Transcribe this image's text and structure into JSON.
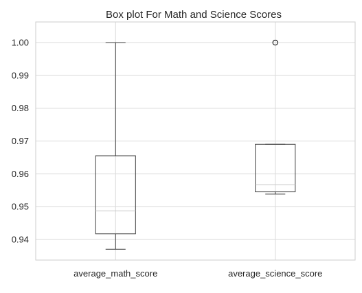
{
  "chart_data": {
    "type": "box",
    "title": "Box plot For Math and Science Scores",
    "xlabel": "",
    "ylabel": "",
    "ylim": [
      0.9337,
      1.0063
    ],
    "yticks": [
      0.94,
      0.95,
      0.96,
      0.97,
      0.98,
      0.99,
      1.0
    ],
    "ytick_labels": [
      "0.94",
      "0.95",
      "0.96",
      "0.97",
      "0.98",
      "0.99",
      "1.00"
    ],
    "grid": true,
    "categories": [
      "average_math_score",
      "average_science_score"
    ],
    "boxes": [
      {
        "label": "average_math_score",
        "whisker_low": 0.937,
        "q1": 0.9417,
        "median": 0.9487,
        "q3": 0.9655,
        "whisker_high": 1.0,
        "outliers": []
      },
      {
        "label": "average_science_score",
        "whisker_low": 0.9538,
        "q1": 0.9545,
        "median": 0.9567,
        "q3": 0.969,
        "whisker_high": 0.969,
        "outliers": [
          1.0
        ]
      }
    ]
  }
}
